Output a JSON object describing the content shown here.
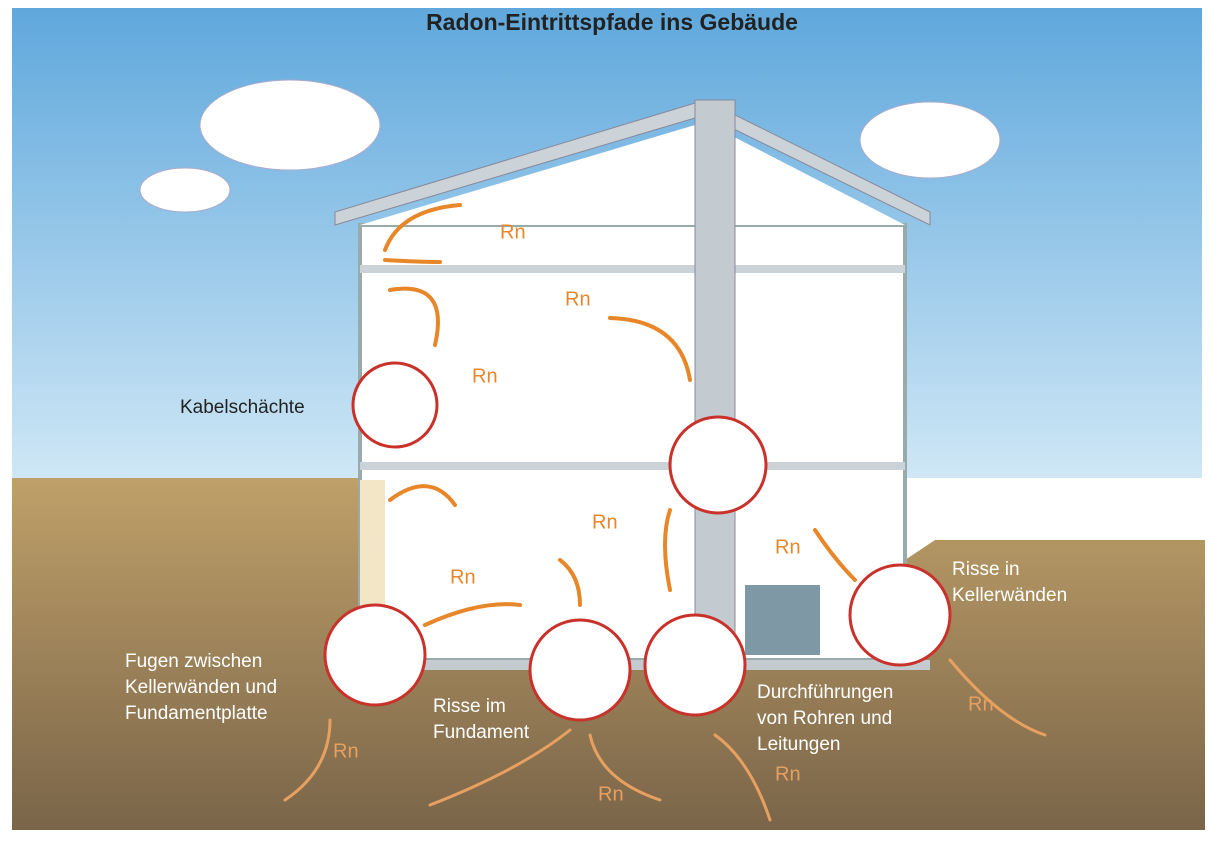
{
  "title": "Radon-Eintrittspfade ins Gebäude",
  "labels": [
    {
      "lines": [
        "Kabelschächte"
      ]
    },
    {
      "lines": [
        "Fugen zwischen",
        "Kellerwänden und",
        "Fundamentplatte"
      ]
    },
    {
      "lines": [
        "Risse im",
        "Fundament"
      ]
    },
    {
      "lines": [
        "Durchführungen",
        "von Rohren und",
        "Leitungen"
      ]
    },
    {
      "lines": [
        "Risse in",
        "Kellerwänden"
      ]
    }
  ],
  "radon_indoor": [
    "Rn",
    "Rn",
    "Rn",
    "Rn",
    "Rn",
    "Rn"
  ],
  "radon_ground": [
    "Rn",
    "Rn",
    "Rn",
    "Rn"
  ]
}
